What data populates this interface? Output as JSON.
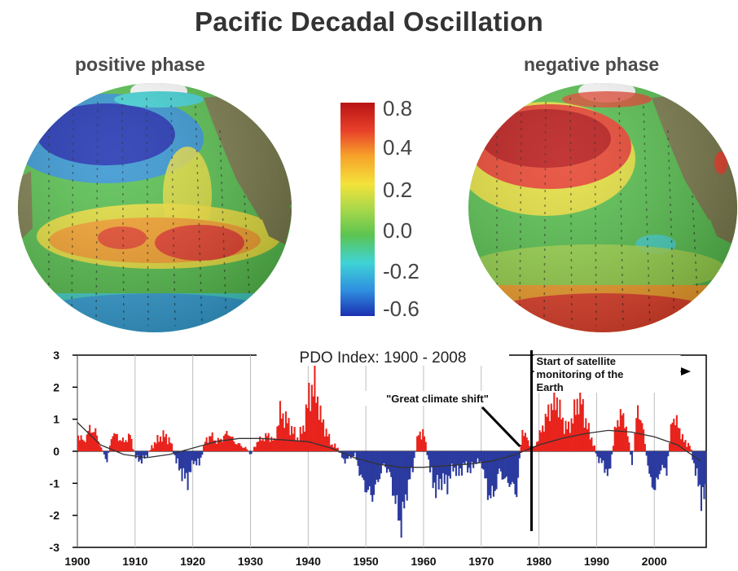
{
  "title": "Pacific Decadal Oscillation",
  "maps": {
    "positive_label": "positive phase",
    "negative_label": "negative phase"
  },
  "colorbar": {
    "ticks": [
      "0.8",
      "0.4",
      "0.2",
      "0.0",
      "-0.2",
      "-0.6"
    ],
    "colors": [
      "#1b2fb0",
      "#2f8fe0",
      "#3fd3d6",
      "#5cc450",
      "#a8d84a",
      "#f4e23a",
      "#f7a22a",
      "#e8402a",
      "#b81414"
    ]
  },
  "chart_data": {
    "type": "bar",
    "title": "PDO Index: 1900 - 2008",
    "xlabel": "",
    "ylabel": "",
    "xlim": [
      1900,
      2009
    ],
    "ylim": [
      -3,
      3
    ],
    "x_ticks": [
      1900,
      1910,
      1920,
      1930,
      1940,
      1950,
      1960,
      1970,
      1980,
      1990,
      2000
    ],
    "y_ticks": [
      3,
      2,
      1,
      0,
      -1,
      -2,
      -3
    ],
    "grid": true,
    "positive_color": "#e8231c",
    "negative_color": "#2b3a9f",
    "annotations": {
      "shift_label": "\"Great climate shift\"",
      "shift_year": 1977,
      "satellite_label_line1": "Start of satellite",
      "satellite_label_line2": "monitoring of the",
      "satellite_label_line3": "Earth",
      "satellite_year": 1979
    },
    "anchors": {
      "x": [
        1900,
        1901,
        1902,
        1903,
        1904,
        1905,
        1906,
        1907,
        1908,
        1909,
        1910,
        1911,
        1912,
        1913,
        1914,
        1915,
        1916,
        1917,
        1918,
        1919,
        1920,
        1921,
        1922,
        1923,
        1924,
        1925,
        1926,
        1927,
        1928,
        1929,
        1930,
        1931,
        1932,
        1933,
        1934,
        1935,
        1936,
        1937,
        1938,
        1939,
        1940,
        1941,
        1942,
        1943,
        1944,
        1945,
        1946,
        1947,
        1948,
        1949,
        1950,
        1951,
        1952,
        1953,
        1954,
        1955,
        1956,
        1957,
        1958,
        1959,
        1960,
        1961,
        1962,
        1963,
        1964,
        1965,
        1966,
        1967,
        1968,
        1969,
        1970,
        1971,
        1972,
        1973,
        1974,
        1975,
        1976,
        1977,
        1978,
        1979,
        1980,
        1981,
        1982,
        1983,
        1984,
        1985,
        1986,
        1987,
        1988,
        1989,
        1990,
        1991,
        1992,
        1993,
        1994,
        1995,
        1996,
        1997,
        1998,
        1999,
        2000,
        2001,
        2002,
        2003,
        2004,
        2005,
        2006,
        2007,
        2008
      ],
      "y": [
        0.5,
        0.3,
        0.7,
        0.6,
        0.1,
        -0.3,
        0.6,
        0.4,
        0.3,
        0.5,
        -0.2,
        -0.3,
        -0.1,
        0.2,
        0.4,
        0.5,
        0.3,
        -0.3,
        -0.7,
        -0.9,
        -0.3,
        -0.4,
        0.3,
        0.5,
        0.3,
        0.4,
        0.6,
        0.3,
        0.2,
        0.1,
        -0.1,
        0.3,
        0.4,
        0.5,
        0.3,
        1.2,
        1.0,
        0.7,
        0.4,
        0.7,
        1.7,
        2.1,
        1.1,
        0.6,
        0.2,
        0.1,
        -0.3,
        -0.2,
        -0.1,
        -0.8,
        -1.2,
        -1.4,
        -0.9,
        -0.4,
        -0.7,
        -1.6,
        -2.3,
        -1.2,
        -0.5,
        0.6,
        0.5,
        -0.6,
        -1.2,
        -0.9,
        -1.0,
        -0.5,
        -0.7,
        -0.4,
        -0.6,
        -0.3,
        -0.4,
        -1.3,
        -1.4,
        -0.6,
        -0.9,
        -1.0,
        -1.3,
        0.7,
        0.3,
        0.1,
        0.5,
        1.0,
        1.4,
        1.6,
        0.9,
        0.7,
        1.2,
        1.8,
        0.9,
        0.4,
        -0.2,
        -0.4,
        -0.8,
        0.6,
        1.2,
        0.8,
        -0.4,
        1.4,
        0.6,
        -0.8,
        -1.2,
        -0.5,
        -0.6,
        1.1,
        0.8,
        0.3,
        0.2,
        -0.6,
        -1.4
      ]
    },
    "smooth": {
      "x": [
        1900,
        1904,
        1908,
        1912,
        1916,
        1920,
        1924,
        1928,
        1932,
        1936,
        1940,
        1944,
        1948,
        1952,
        1956,
        1960,
        1964,
        1968,
        1972,
        1976,
        1980,
        1984,
        1988,
        1992,
        1996,
        2000,
        2004,
        2008
      ],
      "y": [
        0.9,
        0.2,
        -0.1,
        -0.2,
        -0.1,
        0.1,
        0.3,
        0.4,
        0.4,
        0.35,
        0.3,
        0.1,
        -0.2,
        -0.4,
        -0.5,
        -0.5,
        -0.45,
        -0.4,
        -0.3,
        -0.1,
        0.2,
        0.4,
        0.55,
        0.65,
        0.6,
        0.45,
        0.2,
        -0.3
      ]
    }
  }
}
